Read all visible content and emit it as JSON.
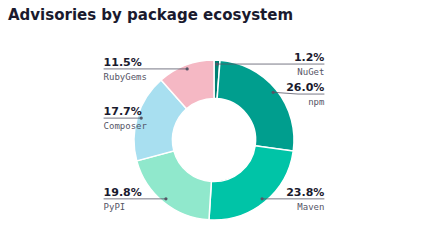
{
  "chart_data": {
    "type": "pie",
    "title": "Advisories by package ecosystem",
    "categories": [
      "NuGet",
      "npm",
      "Maven",
      "PyPI",
      "Composer",
      "RubyGems"
    ],
    "values": [
      1.2,
      26.0,
      23.8,
      19.8,
      17.7,
      11.5
    ],
    "value_labels": [
      "1.2%",
      "26.0%",
      "23.8%",
      "19.8%",
      "17.7%",
      "11.5%"
    ],
    "colors": [
      "#007f72",
      "#009e8e",
      "#00c4a7",
      "#90e8cc",
      "#a8dff0",
      "#f5b8c4"
    ],
    "data_labels": true
  }
}
